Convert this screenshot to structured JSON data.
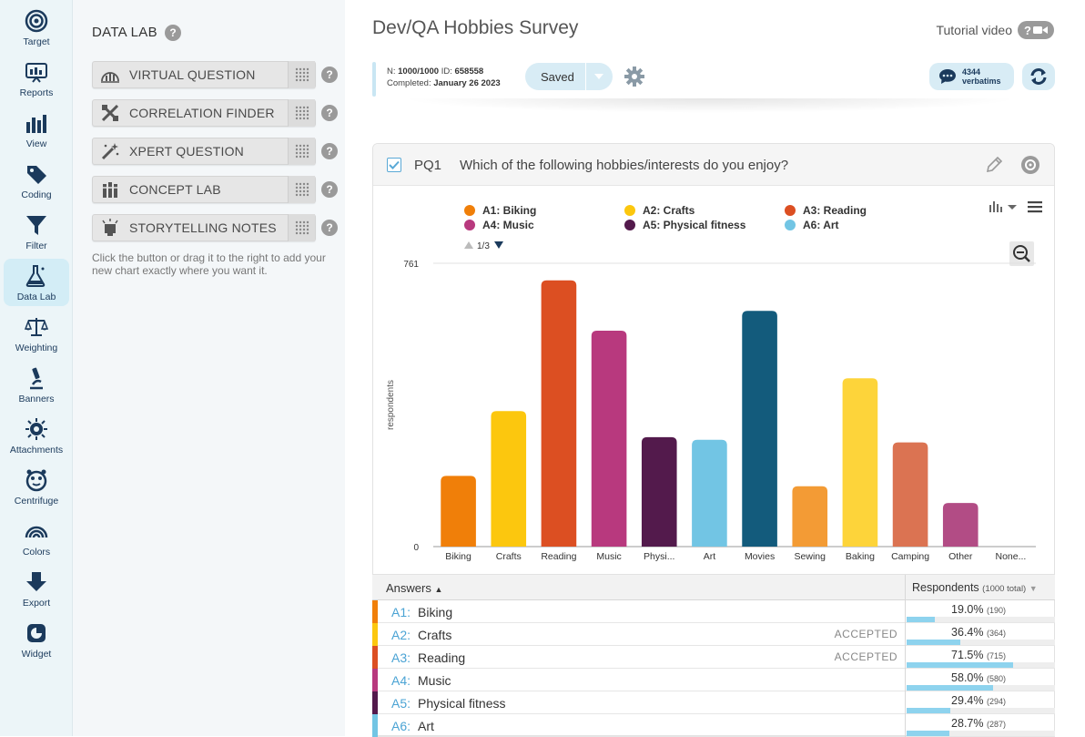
{
  "rail": [
    {
      "label": "Target",
      "icon": "target-icon"
    },
    {
      "label": "Reports",
      "icon": "reports-icon"
    },
    {
      "label": "View",
      "icon": "view-icon"
    },
    {
      "label": "Coding",
      "icon": "coding-icon"
    },
    {
      "label": "Filter",
      "icon": "filter-icon"
    },
    {
      "label": "Data Lab",
      "icon": "flask-icon"
    },
    {
      "label": "Weighting",
      "icon": "scale-icon"
    },
    {
      "label": "Banners",
      "icon": "microscope-icon"
    },
    {
      "label": "Attachments",
      "icon": "attachments-icon"
    },
    {
      "label": "Centrifuge",
      "icon": "centrifuge-icon"
    },
    {
      "label": "Colors",
      "icon": "rainbow-icon"
    },
    {
      "label": "Export",
      "icon": "export-icon"
    },
    {
      "label": "Widget",
      "icon": "widget-icon"
    }
  ],
  "panel": {
    "title": "DATA LAB",
    "tools": [
      {
        "label": "VIRTUAL QUESTION",
        "icon": "virtual-question-icon"
      },
      {
        "label": "CORRELATION FINDER",
        "icon": "correlation-icon"
      },
      {
        "label": "XPERT QUESTION",
        "icon": "magic-wand-icon"
      },
      {
        "label": "CONCEPT LAB",
        "icon": "concept-lab-icon"
      },
      {
        "label": "STORYTELLING NOTES",
        "icon": "storytelling-icon"
      }
    ],
    "hint": "Click the button or drag it to the right to add your new chart exactly where you want it."
  },
  "header": {
    "survey_title": "Dev/QA Hobbies Survey",
    "tutorial_label": "Tutorial video"
  },
  "info": {
    "n_label": "N:",
    "n_value": "1000/1000",
    "id_label": "ID:",
    "id_value": "658558",
    "completed_label": "Completed:",
    "completed_value": "January 26 2023",
    "saved_label": "Saved",
    "verbatims_count": "4344",
    "verbatims_label": "verbatims"
  },
  "question": {
    "id": "PQ1",
    "text": "Which of the following hobbies/interests do you enjoy?"
  },
  "legend": {
    "page": "1/3",
    "items": [
      {
        "label": "A1: Biking",
        "color": "#f07f09"
      },
      {
        "label": "A2: Crafts",
        "color": "#fcc70e"
      },
      {
        "label": "A3: Reading",
        "color": "#dc4f22"
      },
      {
        "label": "A4: Music",
        "color": "#b8397e"
      },
      {
        "label": "A5: Physical fitness",
        "color": "#531a4c"
      },
      {
        "label": "A6: Art",
        "color": "#72c5e4"
      }
    ]
  },
  "chart_data": {
    "type": "bar",
    "title": "Which of the following hobbies/interests do you enjoy?",
    "xlabel": "",
    "ylabel": "respondents",
    "ylim": [
      0,
      761
    ],
    "ytick_labels": [
      "0",
      "761"
    ],
    "categories": [
      "Biking",
      "Crafts",
      "Reading",
      "Music",
      "Physi...",
      "Art",
      "Movies",
      "Sewing",
      "Baking",
      "Camping",
      "Other",
      "None..."
    ],
    "values": [
      190,
      364,
      715,
      580,
      294,
      287,
      633,
      162,
      452,
      280,
      117,
      0
    ],
    "colors": [
      "#f07f09",
      "#fcc70e",
      "#dc4f22",
      "#b8397e",
      "#531a4c",
      "#72c5e4",
      "#135b7c",
      "#f39b35",
      "#fdd43a",
      "#db7352",
      "#b24c85",
      "#cccccc"
    ]
  },
  "table": {
    "col_answers": "Answers",
    "col_respondents": "Respondents",
    "col_respondents_sub": "(1000 total)",
    "rows": [
      {
        "code": "A1:",
        "label": "Biking",
        "accepted": "",
        "pct": "19.0%",
        "count": "(190)",
        "fraction": 0.19,
        "color": "#f07f09"
      },
      {
        "code": "A2:",
        "label": "Crafts",
        "accepted": "ACCEPTED",
        "pct": "36.4%",
        "count": "(364)",
        "fraction": 0.364,
        "color": "#fcc70e"
      },
      {
        "code": "A3:",
        "label": "Reading",
        "accepted": "ACCEPTED",
        "pct": "71.5%",
        "count": "(715)",
        "fraction": 0.715,
        "color": "#dc4f22"
      },
      {
        "code": "A4:",
        "label": "Music",
        "accepted": "",
        "pct": "58.0%",
        "count": "(580)",
        "fraction": 0.58,
        "color": "#b8397e"
      },
      {
        "code": "A5:",
        "label": "Physical fitness",
        "accepted": "",
        "pct": "29.4%",
        "count": "(294)",
        "fraction": 0.294,
        "color": "#531a4c"
      },
      {
        "code": "A6:",
        "label": "Art",
        "accepted": "",
        "pct": "28.7%",
        "count": "(287)",
        "fraction": 0.287,
        "color": "#72c5e4"
      }
    ]
  }
}
